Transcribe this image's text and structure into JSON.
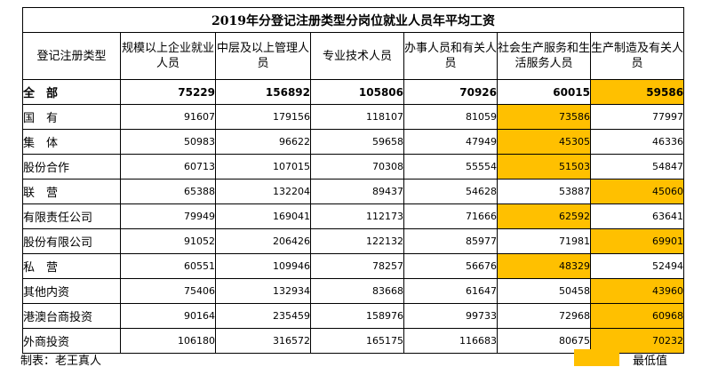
{
  "table": {
    "title": "2019年分登记注册类型分岗位就业人员年平均工资",
    "headers": [
      "登记注册类型",
      "规模以上企业就业人员",
      "中层及以上管理人员",
      "专业技术人员",
      "办事人员和有关人员",
      "社会生产服务和生活服务人员",
      "生产制造及有关人员"
    ],
    "rows": [
      {
        "label": "全　部",
        "values": [
          "75229",
          "156892",
          "105806",
          "70926",
          "60015",
          "59586"
        ],
        "lowest_col": 5,
        "bold": true
      },
      {
        "label": "国　有",
        "values": [
          "91607",
          "179156",
          "118107",
          "81059",
          "73586",
          "77997"
        ],
        "lowest_col": 4
      },
      {
        "label": "集　体",
        "values": [
          "50983",
          "96622",
          "59658",
          "47949",
          "45305",
          "46336"
        ],
        "lowest_col": 4
      },
      {
        "label": "股份合作",
        "values": [
          "60713",
          "107015",
          "70308",
          "55554",
          "51503",
          "54847"
        ],
        "lowest_col": 4
      },
      {
        "label": "联　营",
        "values": [
          "65388",
          "132204",
          "89437",
          "54628",
          "53887",
          "45060"
        ],
        "lowest_col": 5
      },
      {
        "label": "有限责任公司",
        "values": [
          "79949",
          "169041",
          "112173",
          "71666",
          "62592",
          "63641"
        ],
        "lowest_col": 4
      },
      {
        "label": "股份有限公司",
        "values": [
          "91052",
          "206426",
          "122132",
          "85977",
          "71981",
          "69901"
        ],
        "lowest_col": 5
      },
      {
        "label": "私　营",
        "values": [
          "60551",
          "109946",
          "78257",
          "56676",
          "48329",
          "52494"
        ],
        "lowest_col": 4
      },
      {
        "label": "其他内资",
        "values": [
          "75406",
          "132934",
          "83668",
          "61647",
          "50458",
          "43960"
        ],
        "lowest_col": 5
      },
      {
        "label": "港澳台商投资",
        "values": [
          "90164",
          "235459",
          "158976",
          "99733",
          "72968",
          "60968"
        ],
        "lowest_col": 5
      },
      {
        "label": "外商投资",
        "values": [
          "106180",
          "316572",
          "165175",
          "116683",
          "80675",
          "70232"
        ],
        "lowest_col": 5
      }
    ]
  },
  "footer": {
    "author": "制表：老王真人",
    "legend_label": "最低值"
  },
  "colors": {
    "highlight": "#FFC000",
    "border": "#000000"
  }
}
